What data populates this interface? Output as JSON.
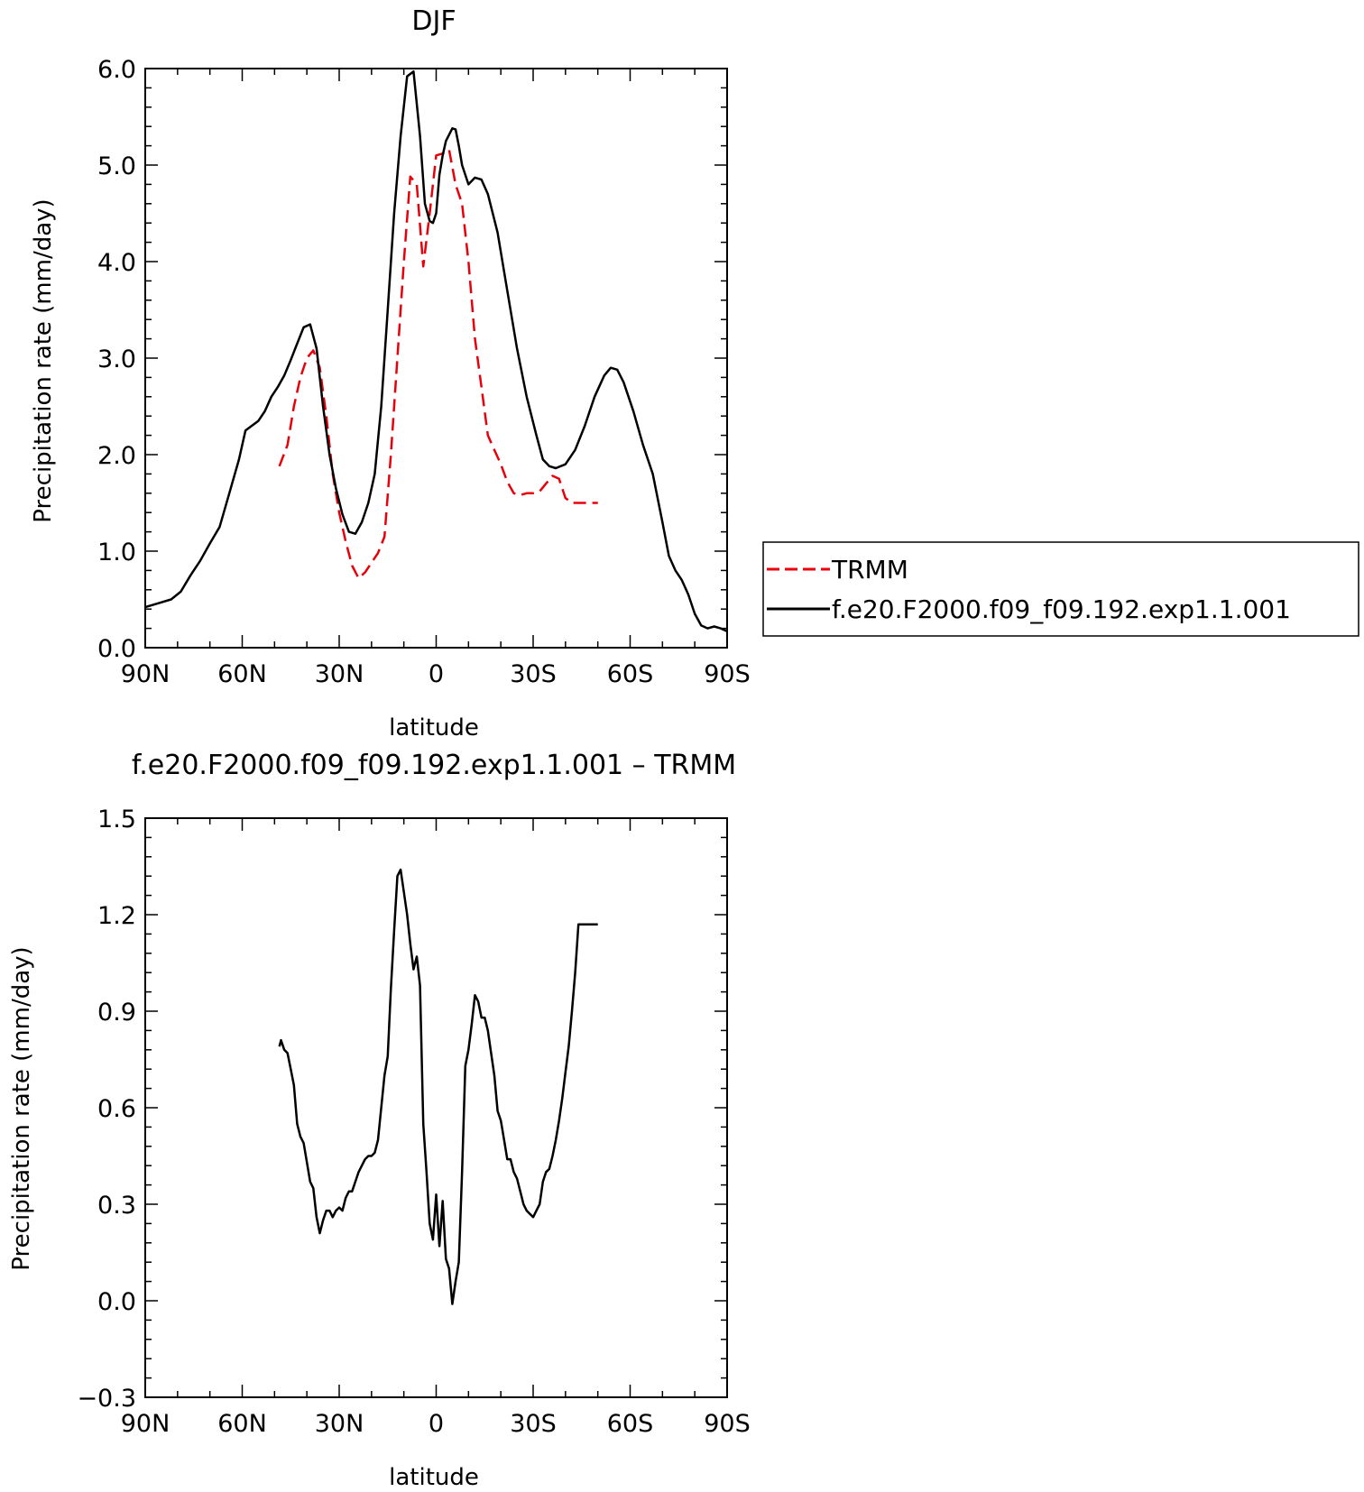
{
  "chart_data": [
    {
      "type": "line",
      "title": "DJF",
      "xlabel": "latitude",
      "ylabel": "Precipitation rate (mm/day)",
      "xlim": [
        90,
        -90
      ],
      "ylim": [
        0,
        6
      ],
      "x_ticks": [
        90,
        60,
        30,
        0,
        -30,
        -60,
        -90
      ],
      "x_tick_labels": [
        "90N",
        "60N",
        "30N",
        "0",
        "30S",
        "60S",
        "90S"
      ],
      "y_ticks": [
        0,
        1,
        2,
        3,
        4,
        5,
        6
      ],
      "y_tick_labels": [
        "0.0",
        "1.0",
        "2.0",
        "3.0",
        "4.0",
        "5.0",
        "6.0"
      ],
      "legend_position": "right",
      "series": [
        {
          "name": "TRMM",
          "color": "#e8000b",
          "dash": "dashed",
          "x": [
            48.5,
            46,
            44,
            42,
            40,
            38,
            36,
            34,
            32,
            30,
            28,
            26,
            24,
            22,
            20,
            18,
            16,
            14,
            12,
            10,
            8,
            6,
            4,
            2,
            0,
            -2,
            -4,
            -6,
            -8,
            -10,
            -12,
            -14,
            -16,
            -18,
            -20,
            -22,
            -24,
            -26,
            -28,
            -30,
            -32,
            -34,
            -36,
            -38,
            -40,
            -42,
            -44,
            -46,
            -48,
            -50
          ],
          "y": [
            1.88,
            2.1,
            2.5,
            2.8,
            3.0,
            3.08,
            2.9,
            2.4,
            1.8,
            1.4,
            1.1,
            0.85,
            0.72,
            0.78,
            0.88,
            0.98,
            1.15,
            2.0,
            3.0,
            4.0,
            4.88,
            4.8,
            3.95,
            4.5,
            5.1,
            5.12,
            5.16,
            4.8,
            4.6,
            4.0,
            3.2,
            2.7,
            2.2,
            2.05,
            1.9,
            1.72,
            1.6,
            1.58,
            1.6,
            1.6,
            1.62,
            1.7,
            1.78,
            1.75,
            1.55,
            1.5,
            1.5,
            1.5,
            1.5,
            1.5
          ]
        },
        {
          "name": "f.e20.F2000.f09_f09.192.exp1.1.001",
          "color": "#000000",
          "dash": "solid",
          "x": [
            90,
            86,
            82,
            79,
            76,
            73,
            70,
            67,
            64,
            61,
            59,
            57,
            55,
            53,
            51,
            49,
            47,
            45,
            43,
            41,
            39,
            37,
            35,
            33,
            31,
            29,
            27,
            25,
            23,
            21,
            19,
            17,
            15,
            13,
            11,
            9,
            7,
            5,
            3.5,
            2,
            1,
            0,
            -1,
            -2,
            -3,
            -5,
            -6,
            -7,
            -8,
            -10,
            -12,
            -14,
            -16,
            -19,
            -22,
            -25,
            -28,
            -31,
            -33,
            -35,
            -37,
            -40,
            -43,
            -46,
            -49,
            -52,
            -54,
            -56,
            -58,
            -61,
            -64,
            -67,
            -70,
            -72,
            -74,
            -76,
            -78,
            -80,
            -82,
            -84,
            -86,
            -88,
            -90
          ],
          "y": [
            0.42,
            0.46,
            0.5,
            0.58,
            0.75,
            0.9,
            1.08,
            1.25,
            1.6,
            1.95,
            2.25,
            2.3,
            2.35,
            2.45,
            2.6,
            2.7,
            2.82,
            2.98,
            3.15,
            3.32,
            3.35,
            3.1,
            2.5,
            2.0,
            1.65,
            1.38,
            1.2,
            1.18,
            1.3,
            1.5,
            1.8,
            2.5,
            3.5,
            4.5,
            5.3,
            5.92,
            5.97,
            5.3,
            4.6,
            4.42,
            4.4,
            4.5,
            4.9,
            5.1,
            5.25,
            5.38,
            5.37,
            5.2,
            5.0,
            4.8,
            4.87,
            4.85,
            4.7,
            4.3,
            3.7,
            3.1,
            2.6,
            2.2,
            1.95,
            1.88,
            1.86,
            1.9,
            2.05,
            2.3,
            2.6,
            2.82,
            2.9,
            2.88,
            2.75,
            2.45,
            2.1,
            1.8,
            1.3,
            0.95,
            0.8,
            0.7,
            0.55,
            0.35,
            0.23,
            0.2,
            0.22,
            0.2,
            0.17
          ]
        }
      ]
    },
    {
      "type": "line",
      "title": "f.e20.F2000.f09_f09.192.exp1.1.001 – TRMM",
      "xlabel": "latitude",
      "ylabel": "Precipitation rate (mm/day)",
      "xlim": [
        90,
        -90
      ],
      "ylim": [
        -0.3,
        1.5
      ],
      "x_ticks": [
        90,
        60,
        30,
        0,
        -30,
        -60,
        -90
      ],
      "x_tick_labels": [
        "90N",
        "60N",
        "30N",
        "0",
        "30S",
        "60S",
        "90S"
      ],
      "y_ticks": [
        -0.3,
        0,
        0.3,
        0.6,
        0.9,
        1.2,
        1.5
      ],
      "y_tick_labels": [
        "−0.3",
        "0.0",
        "0.3",
        "0.6",
        "0.9",
        "1.2",
        "1.5"
      ],
      "series": [
        {
          "name": "",
          "color": "#000000",
          "dash": "solid",
          "x": [
            48.5,
            48,
            47,
            46,
            45,
            44,
            43,
            42,
            41,
            40,
            39,
            38,
            37,
            36,
            35,
            34,
            33,
            32,
            31,
            30,
            29,
            28,
            27,
            26,
            25,
            24,
            23,
            22,
            21,
            20,
            19,
            18,
            17,
            16,
            15,
            14,
            13,
            12,
            11,
            10,
            9,
            8,
            7,
            6,
            5,
            4,
            3,
            2,
            1,
            0,
            -1,
            -2,
            -3,
            -4,
            -5,
            -6,
            -7,
            -8,
            -9,
            -10,
            -11,
            -12,
            -13,
            -14,
            -15,
            -16,
            -17,
            -18,
            -19,
            -20,
            -21,
            -22,
            -23,
            -24,
            -25,
            -26,
            -27,
            -28,
            -29,
            -30,
            -31,
            -32,
            -33,
            -34,
            -35,
            -36,
            -37,
            -38,
            -39,
            -40,
            -41,
            -42,
            -43,
            -44,
            -45,
            -46,
            -47,
            -48,
            -49,
            -50
          ],
          "y": [
            0.79,
            0.81,
            0.78,
            0.77,
            0.72,
            0.67,
            0.55,
            0.51,
            0.49,
            0.43,
            0.37,
            0.35,
            0.26,
            0.21,
            0.25,
            0.28,
            0.28,
            0.26,
            0.28,
            0.29,
            0.28,
            0.32,
            0.34,
            0.34,
            0.37,
            0.4,
            0.42,
            0.44,
            0.45,
            0.45,
            0.46,
            0.5,
            0.6,
            0.7,
            0.76,
            0.97,
            1.15,
            1.32,
            1.34,
            1.27,
            1.2,
            1.11,
            1.03,
            1.07,
            0.98,
            0.55,
            0.4,
            0.24,
            0.19,
            0.33,
            0.17,
            0.31,
            0.13,
            0.1,
            -0.01,
            0.06,
            0.12,
            0.4,
            0.73,
            0.78,
            0.86,
            0.95,
            0.93,
            0.88,
            0.88,
            0.84,
            0.77,
            0.7,
            0.59,
            0.56,
            0.5,
            0.44,
            0.44,
            0.4,
            0.38,
            0.34,
            0.3,
            0.28,
            0.27,
            0.26,
            0.28,
            0.3,
            0.37,
            0.4,
            0.41,
            0.45,
            0.5,
            0.56,
            0.63,
            0.71,
            0.79,
            0.9,
            1.02,
            1.17,
            1.17,
            1.17,
            1.17,
            1.17,
            1.17,
            1.17
          ]
        }
      ]
    }
  ]
}
